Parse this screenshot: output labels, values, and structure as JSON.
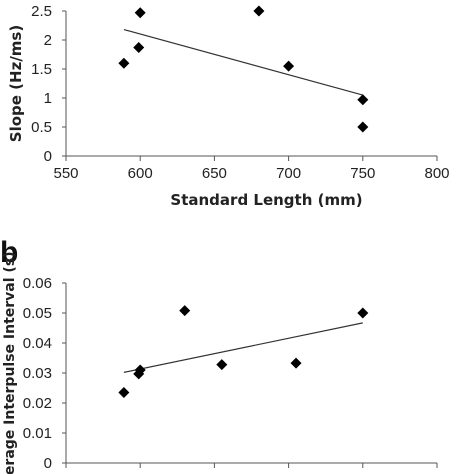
{
  "chart_data": [
    {
      "type": "scatter",
      "panel_label": "",
      "xlabel": "Standard Length (mm)",
      "ylabel": "Slope (Hz/ms)",
      "xlim": [
        550,
        800
      ],
      "ylim": [
        0,
        2.5
      ],
      "x_ticks": [
        "550",
        "600",
        "650",
        "700",
        "750",
        "800"
      ],
      "y_ticks": [
        "0",
        "0.5",
        "1",
        "1.5",
        "2",
        "2.5"
      ],
      "points": [
        {
          "x": 589,
          "y": 1.6
        },
        {
          "x": 599,
          "y": 1.87
        },
        {
          "x": 600,
          "y": 2.47
        },
        {
          "x": 680,
          "y": 2.5
        },
        {
          "x": 700,
          "y": 1.55
        },
        {
          "x": 750,
          "y": 0.97
        },
        {
          "x": 750,
          "y": 0.5
        }
      ],
      "trendline": {
        "x": [
          589,
          750
        ],
        "y": [
          2.18,
          1.05
        ]
      },
      "marker": "diamond",
      "marker_color": "#000000",
      "grid": false
    },
    {
      "type": "scatter",
      "panel_label": "b",
      "xlabel": "",
      "ylabel": "Average Interpulse Interval (s)",
      "xlim": [
        550,
        800
      ],
      "ylim": [
        0,
        0.06
      ],
      "x_ticks": [],
      "y_ticks": [
        "0",
        "0.01",
        "0.02",
        "0.03",
        "0.04",
        "0.05",
        "0.06"
      ],
      "points": [
        {
          "x": 589,
          "y": 0.0235
        },
        {
          "x": 599,
          "y": 0.0297
        },
        {
          "x": 600,
          "y": 0.031
        },
        {
          "x": 630,
          "y": 0.0508
        },
        {
          "x": 655,
          "y": 0.0328
        },
        {
          "x": 705,
          "y": 0.0333
        },
        {
          "x": 750,
          "y": 0.05
        }
      ],
      "trendline": {
        "x": [
          589,
          750
        ],
        "y": [
          0.0302,
          0.0467
        ]
      },
      "marker": "diamond",
      "marker_color": "#000000",
      "grid": false
    }
  ]
}
